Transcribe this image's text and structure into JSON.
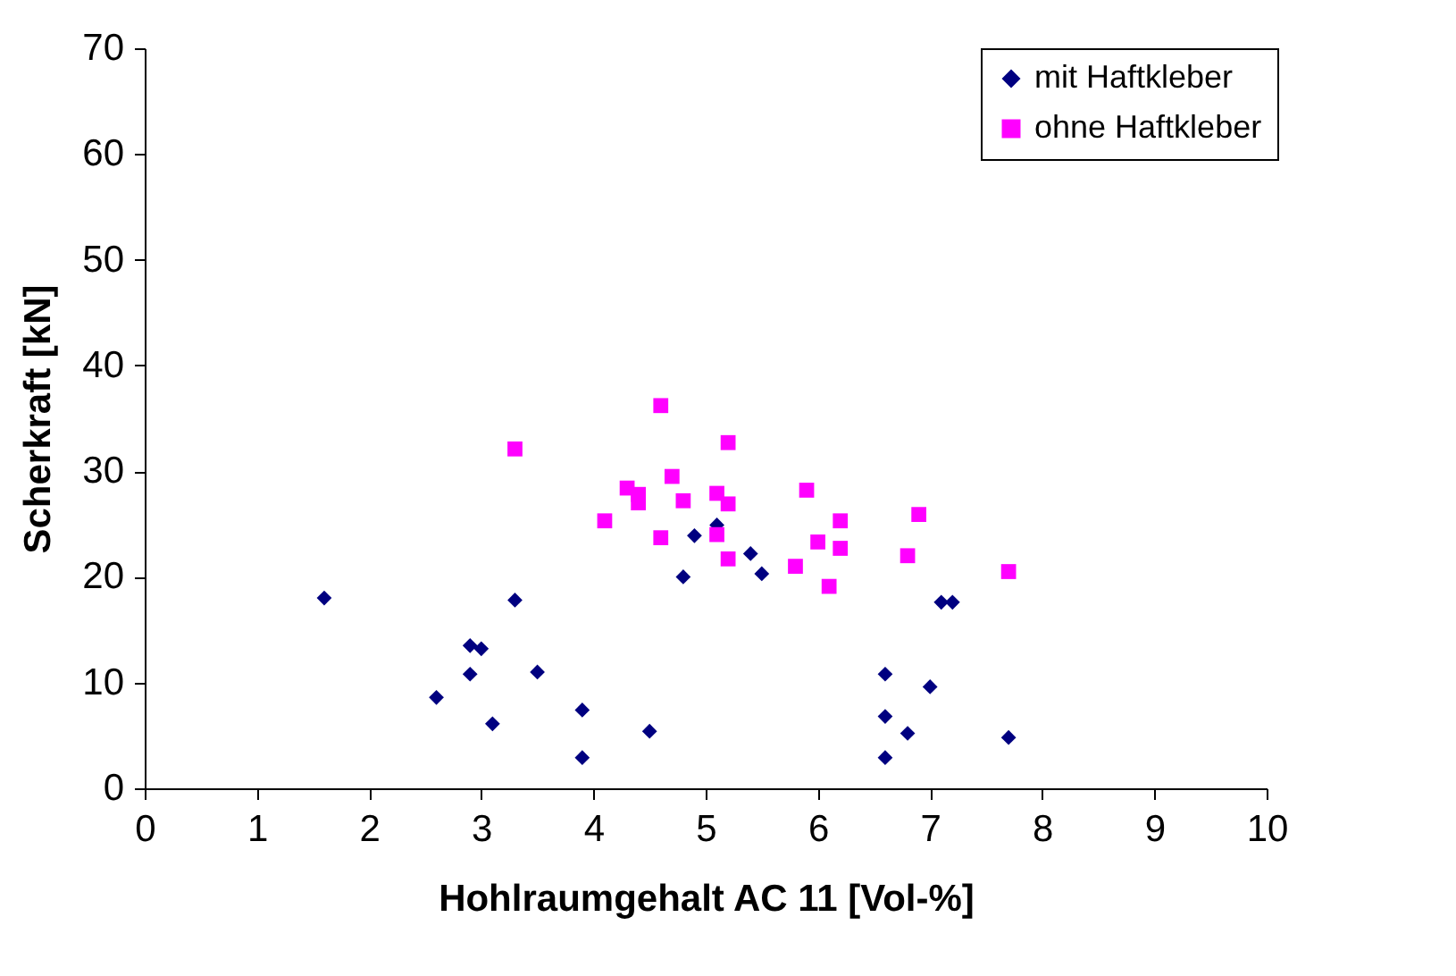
{
  "chart_data": {
    "type": "scatter",
    "xlabel": "Hohlraumgehalt  AC 11 [Vol-%]",
    "ylabel": "Scherkraft [kN]",
    "xlim": [
      0,
      10
    ],
    "xticks": [
      0,
      1,
      2,
      3,
      4,
      5,
      6,
      7,
      8,
      9,
      10
    ],
    "ylim": [
      0,
      70
    ],
    "yticks": [
      0,
      10,
      20,
      30,
      40,
      50,
      60,
      70
    ],
    "grid": false,
    "legend": "right",
    "series": [
      {
        "name": "mit Haftkleber",
        "color": "#000080",
        "marker": "diamond",
        "x": [
          1.6,
          2.6,
          2.9,
          2.9,
          3.0,
          3.1,
          3.3,
          3.5,
          3.9,
          3.9,
          4.5,
          4.8,
          4.9,
          5.1,
          5.4,
          5.5,
          6.6,
          6.6,
          6.6,
          6.8,
          7.0,
          7.1,
          7.2,
          7.7
        ],
        "values": [
          18,
          8.6,
          13.5,
          10.8,
          13.2,
          6.1,
          17.8,
          11,
          7.4,
          2.9,
          5.4,
          20,
          23.9,
          24.9,
          22.2,
          20.3,
          10.8,
          6.8,
          2.9,
          5.2,
          9.6,
          17.6,
          17.6,
          4.8
        ]
      },
      {
        "name": "ohne Haftkleber",
        "color": "#ff00ff",
        "marker": "square",
        "x": [
          3.3,
          4.1,
          4.3,
          4.4,
          4.4,
          4.6,
          4.7,
          4.6,
          4.8,
          5.2,
          5.1,
          5.2,
          5.1,
          5.2,
          5.9,
          6.2,
          6.0,
          6.2,
          5.8,
          6.1,
          6.9,
          6.8,
          7.7
        ],
        "values": [
          32.1,
          25.3,
          28.4,
          27.8,
          27.0,
          36.2,
          29.5,
          23.7,
          27.2,
          32.7,
          27.9,
          26.9,
          24.0,
          21.7,
          28.2,
          25.3,
          23.3,
          22.7,
          21.0,
          19.1,
          25.9,
          22.0,
          20.5
        ]
      }
    ]
  }
}
